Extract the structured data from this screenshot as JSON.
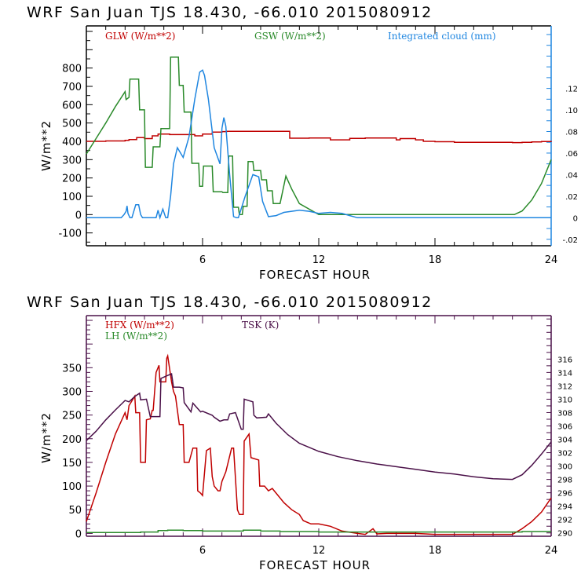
{
  "chart_data": [
    {
      "type": "line",
      "title": "WRF  San Juan TJS  18.430, -66.010  2015080912",
      "xlabel": "FORECAST HOUR",
      "ylabel": "W/m**2",
      "xlim": [
        0,
        24
      ],
      "ylim": [
        -170,
        1030
      ],
      "y2lim": [
        -0.026,
        0.178
      ],
      "x_ticks": [
        "6",
        "12",
        "18",
        "24"
      ],
      "x_tick_values": [
        6,
        12,
        18,
        24
      ],
      "y_ticks": [
        "800",
        "700",
        "600",
        "500",
        "400",
        "300",
        "200",
        "100",
        "0",
        "-100"
      ],
      "y_tick_values": [
        800,
        700,
        600,
        500,
        400,
        300,
        200,
        100,
        0,
        -100
      ],
      "y2_ticks": [
        ".12",
        ".10",
        ".08",
        ".06",
        ".04",
        ".02",
        "0",
        "-.02"
      ],
      "y2_tick_values": [
        0.12,
        0.1,
        0.08,
        0.06,
        0.04,
        0.02,
        0,
        -0.02
      ],
      "grid": false,
      "legend": "top",
      "series": [
        {
          "name": "GLW (W/m**2)",
          "color": "#c00000",
          "axis": "left",
          "step": true,
          "x": [
            0,
            1,
            2,
            2.2,
            2.6,
            3.0,
            3.4,
            3.7,
            4.3,
            4.6,
            4.8,
            5.0,
            5.6,
            6.0,
            6.5,
            7.0,
            7.25,
            7.55,
            8.0,
            8.6,
            9.4,
            9.6,
            10.2,
            10.5,
            11.0,
            11.5,
            12.0,
            12.6,
            13.0,
            13.6,
            14.4,
            15.0,
            15.2,
            16.0,
            16.2,
            17.0,
            17.4,
            18.0,
            19.0,
            20.0,
            21.5,
            22.0,
            22.5,
            23.0,
            23.5,
            24.0
          ],
          "y": [
            400,
            402,
            405,
            410,
            420,
            415,
            430,
            440,
            437,
            437,
            437,
            437,
            430,
            440,
            450,
            453,
            455,
            455,
            455,
            455,
            455,
            455,
            455,
            417,
            417,
            418,
            418,
            408,
            408,
            416,
            418,
            418,
            418,
            408,
            415,
            408,
            400,
            398,
            395,
            395,
            395,
            393,
            395,
            397,
            399,
            402
          ]
        },
        {
          "name": "GSW (W/m**2)",
          "color": "#2a8a2a",
          "axis": "left",
          "step": false,
          "x": [
            0,
            0.5,
            1.0,
            1.5,
            2.0,
            2.05,
            2.2,
            2.25,
            2.7,
            2.75,
            3.0,
            3.05,
            3.4,
            3.45,
            3.8,
            3.85,
            4.1,
            4.3,
            4.35,
            4.75,
            4.8,
            5.0,
            5.05,
            5.4,
            5.45,
            5.8,
            5.85,
            6.0,
            6.05,
            6.5,
            6.55,
            7.0,
            7.05,
            7.3,
            7.35,
            7.55,
            7.6,
            7.85,
            7.9,
            8.05,
            8.1,
            8.3,
            8.35,
            8.6,
            8.65,
            9.0,
            9.05,
            9.3,
            9.35,
            9.6,
            9.65,
            10.0,
            10.3,
            10.6,
            11.0,
            12.0,
            16.0,
            22.0,
            22.1,
            22.5,
            23.0,
            23.5,
            24.0
          ],
          "y": [
            331,
            415,
            500,
            590,
            671,
            628,
            640,
            740,
            740,
            572,
            572,
            258,
            258,
            370,
            370,
            470,
            470,
            470,
            860,
            860,
            705,
            705,
            560,
            560,
            280,
            280,
            155,
            155,
            265,
            265,
            125,
            125,
            120,
            120,
            320,
            320,
            40,
            40,
            0,
            0,
            45,
            45,
            290,
            290,
            240,
            240,
            190,
            190,
            130,
            130,
            60,
            60,
            210,
            140,
            60,
            0,
            0,
            0,
            0,
            20,
            80,
            170,
            300
          ]
        },
        {
          "name": "Integrated cloud (mm)",
          "color": "#1f86e0",
          "axis": "right",
          "step": false,
          "x": [
            0,
            1.8,
            1.95,
            2.05,
            2.1,
            2.15,
            2.25,
            2.35,
            2.55,
            2.7,
            2.8,
            2.9,
            3.6,
            3.7,
            3.8,
            3.95,
            4.1,
            4.2,
            4.35,
            4.5,
            4.7,
            5.0,
            5.3,
            5.6,
            5.85,
            6.0,
            6.1,
            6.3,
            6.6,
            6.9,
            7.0,
            7.1,
            7.2,
            7.4,
            7.6,
            7.75,
            7.85,
            8.2,
            8.6,
            8.9,
            9.1,
            9.4,
            9.8,
            10.2,
            10.6,
            11.0,
            11.5,
            12.0,
            12.6,
            13.2,
            13.6,
            14.0,
            24.0
          ],
          "y": [
            0,
            0,
            0.003,
            0.006,
            0.011,
            0.004,
            0.0,
            0.0,
            0.012,
            0.012,
            0.003,
            0.0,
            0.0,
            0.007,
            0.0,
            0.008,
            0.0,
            0.0,
            0.02,
            0.05,
            0.065,
            0.056,
            0.075,
            0.11,
            0.135,
            0.137,
            0.132,
            0.11,
            0.065,
            0.05,
            0.083,
            0.093,
            0.085,
            0.04,
            0.001,
            0.0,
            0.0,
            0.02,
            0.04,
            0.038,
            0.015,
            0.001,
            0.002,
            0.005,
            0.006,
            0.007,
            0.006,
            0.004,
            0.005,
            0.004,
            0.002,
            0.0,
            0.0
          ]
        }
      ]
    },
    {
      "type": "line",
      "title": "WRF  San Juan TJS  18.430, -66.010  2015080912",
      "xlabel": "FORECAST HOUR",
      "ylabel": "W/m**2",
      "xlim": [
        0,
        24
      ],
      "ylim": [
        -6,
        460
      ],
      "y2lim": [
        289.5,
        322.5
      ],
      "x_ticks": [
        "6",
        "12",
        "18",
        "24"
      ],
      "x_tick_values": [
        6,
        12,
        18,
        24
      ],
      "y_ticks": [
        "350",
        "300",
        "250",
        "200",
        "150",
        "100",
        "50",
        "0"
      ],
      "y_tick_values": [
        350,
        300,
        250,
        200,
        150,
        100,
        50,
        0
      ],
      "y2_ticks": [
        "316",
        "314",
        "312",
        "310",
        "308",
        "306",
        "304",
        "302",
        "300",
        "298",
        "296",
        "294",
        "292",
        "290"
      ],
      "y2_tick_values": [
        316,
        314,
        312,
        310,
        308,
        306,
        304,
        302,
        300,
        298,
        296,
        294,
        292,
        290
      ],
      "grid": false,
      "legend": "top-left",
      "series": [
        {
          "name": "HFX (W/m**2)",
          "color": "#c00000",
          "axis": "left",
          "step": false,
          "x": [
            0,
            0.5,
            1.0,
            1.5,
            2.0,
            2.1,
            2.2,
            2.5,
            2.55,
            2.75,
            2.8,
            3.05,
            3.1,
            3.3,
            3.4,
            3.45,
            3.6,
            3.75,
            3.8,
            4.1,
            4.15,
            4.2,
            4.4,
            4.5,
            4.6,
            4.8,
            5.0,
            5.05,
            5.3,
            5.5,
            5.7,
            5.75,
            5.9,
            6.0,
            6.2,
            6.4,
            6.5,
            6.6,
            6.8,
            6.9,
            7.0,
            7.2,
            7.5,
            7.6,
            7.8,
            7.9,
            8.1,
            8.15,
            8.4,
            8.5,
            8.9,
            8.95,
            9.2,
            9.4,
            9.6,
            9.8,
            10.2,
            10.6,
            11.0,
            11.2,
            11.6,
            12.0,
            12.6,
            13.2,
            14.0,
            14.4,
            14.8,
            15.0,
            15.5,
            16.0,
            17.0,
            17.5,
            18.0,
            19.0,
            20.0,
            21.0,
            22.0,
            22.5,
            23.0,
            23.5,
            24.0
          ],
          "y": [
            25,
            85,
            150,
            210,
            255,
            240,
            270,
            290,
            255,
            255,
            150,
            150,
            240,
            242,
            260,
            260,
            340,
            355,
            320,
            320,
            370,
            375,
            320,
            300,
            290,
            230,
            230,
            150,
            150,
            180,
            180,
            90,
            85,
            80,
            175,
            180,
            120,
            100,
            90,
            90,
            110,
            130,
            180,
            180,
            50,
            40,
            40,
            195,
            210,
            160,
            155,
            100,
            100,
            90,
            95,
            85,
            65,
            50,
            40,
            27,
            20,
            20,
            15,
            5,
            0,
            -2,
            10,
            -1,
            0,
            0,
            0,
            -1,
            -2,
            -2,
            -2,
            -2,
            -2,
            10,
            25,
            45,
            75
          ]
        },
        {
          "name": "LH (W/m**2)",
          "color": "#2a8a2a",
          "axis": "left",
          "step": true,
          "x": [
            0,
            2.0,
            2.8,
            3.7,
            4.2,
            5.0,
            6.0,
            7.0,
            8.0,
            8.1,
            9.0,
            10.0,
            11.0,
            12.0,
            15.0,
            20.0,
            22.0,
            22.5,
            24.0
          ],
          "y": [
            2,
            2,
            3,
            6,
            7,
            6,
            5,
            5,
            5,
            7,
            5,
            4,
            4,
            3,
            3,
            3,
            3,
            4,
            4
          ]
        },
        {
          "name": "TSK (K)",
          "color": "#4a1048",
          "axis": "right",
          "step": false,
          "x": [
            0,
            0.5,
            1.0,
            1.5,
            2.0,
            2.2,
            2.5,
            2.75,
            2.8,
            3.1,
            3.3,
            3.8,
            3.85,
            4.0,
            4.4,
            4.5,
            4.8,
            5.0,
            5.05,
            5.4,
            5.5,
            5.9,
            6.0,
            6.5,
            6.6,
            6.9,
            7.1,
            7.3,
            7.4,
            7.7,
            8.0,
            8.1,
            8.15,
            8.6,
            8.65,
            8.8,
            9.3,
            9.4,
            9.8,
            10.4,
            11.0,
            12.0,
            13.0,
            14.0,
            15.0,
            16.0,
            17.0,
            18.0,
            19.0,
            20.0,
            21.0,
            22.0,
            22.5,
            23.0,
            23.5,
            24.0
          ],
          "y": [
            303.8,
            305.2,
            306.9,
            308.4,
            309.8,
            309.6,
            310.4,
            310.9,
            309.9,
            310.0,
            307.4,
            307.4,
            313.1,
            313.3,
            313.8,
            311.8,
            311.8,
            311.7,
            309.5,
            308.1,
            309.4,
            308.1,
            308.2,
            307.6,
            307.3,
            306.7,
            306.9,
            306.9,
            307.8,
            308.0,
            305.5,
            305.5,
            310.0,
            309.6,
            307.6,
            307.2,
            307.3,
            307.8,
            306.4,
            304.7,
            303.4,
            302.2,
            301.4,
            300.8,
            300.3,
            299.9,
            299.5,
            299.1,
            298.8,
            298.4,
            298.1,
            298.0,
            298.7,
            300.1,
            301.8,
            303.6
          ]
        }
      ]
    }
  ],
  "plots": [
    {
      "title": "WRF  San Juan TJS  18.430, -66.010  2015080912",
      "xlabel": "FORECAST HOUR",
      "ylabel": "W/m**2",
      "legend": [
        "GLW (W/m**2)",
        "GSW (W/m**2)",
        "Integrated cloud (mm)"
      ]
    },
    {
      "title": "WRF  San Juan TJS  18.430, -66.010  2015080912",
      "xlabel": "FORECAST HOUR",
      "ylabel": "W/m**2",
      "legend": [
        "HFX (W/m**2)",
        "LH  (W/m**2)",
        "TSK (K)"
      ]
    }
  ],
  "colors": {
    "axis_top_right": "#1f86e0",
    "axis_bottom": "#4a1048",
    "text": "#000000"
  }
}
